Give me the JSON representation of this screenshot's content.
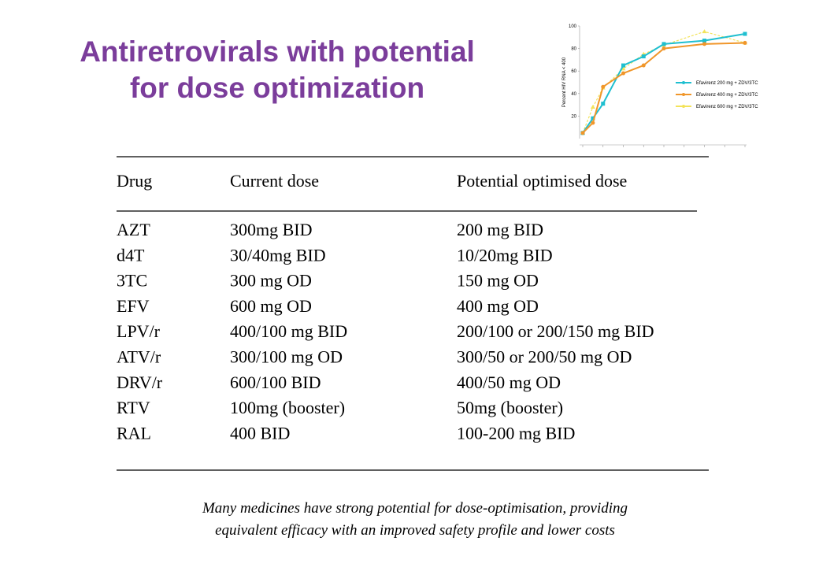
{
  "header": {
    "title": [
      "Antiretrovirals with potential",
      "for dose optimization"
    ]
  },
  "table": {
    "columns": [
      "Drug",
      "Current dose",
      "Potential optimised dose"
    ],
    "rows": [
      [
        "AZT",
        "300mg BID",
        "200 mg BID"
      ],
      [
        "d4T",
        "30/40mg BID",
        "10/20mg BID"
      ],
      [
        "3TC",
        "300 mg OD",
        "150 mg OD"
      ],
      [
        "EFV",
        "600 mg OD",
        "400 mg OD"
      ],
      [
        "LPV/r",
        "400/100 mg BID",
        "200/100 or 200/150 mg BID"
      ],
      [
        "ATV/r",
        "300/100 mg OD",
        "300/50 or 200/50 mg OD"
      ],
      [
        "DRV/r",
        "600/100 BID",
        "400/50 mg OD"
      ],
      [
        "RTV",
        "100mg (booster)",
        "50mg (booster)"
      ],
      [
        "RAL",
        "400 BID",
        "100-200 mg BID"
      ]
    ]
  },
  "caption": [
    "Many medicines have strong potential for dose-optimisation, providing",
    "equivalent efficacy with an improved safety profile and lower costs"
  ],
  "chart_data": {
    "type": "line",
    "y_label": "Percent HIV RNA < 400",
    "x": [
      0,
      0.5,
      1,
      2,
      3,
      4,
      6,
      8
    ],
    "xlim": [
      0,
      8
    ],
    "xticks": [
      0,
      1,
      2,
      3,
      4,
      5,
      6,
      7,
      8
    ],
    "ylim": [
      0,
      100
    ],
    "yticks": [
      20,
      40,
      60,
      80,
      100
    ],
    "series": [
      {
        "name": "Efavirenz 200 mg + ZDV/3TC",
        "color": "#1fbfd0",
        "values": [
          5,
          18,
          31,
          65,
          73,
          84,
          87,
          93
        ]
      },
      {
        "name": "Efavirenz 400 mg + ZDV/3TC",
        "color": "#f0962a",
        "values": [
          5,
          14,
          46,
          58,
          65,
          80,
          84,
          85
        ]
      },
      {
        "name": "Efavirenz 600 mg + ZDV/3TC",
        "color": "#f3e35a",
        "values": [
          5,
          28,
          45,
          62,
          75,
          83,
          95,
          85
        ]
      }
    ]
  }
}
